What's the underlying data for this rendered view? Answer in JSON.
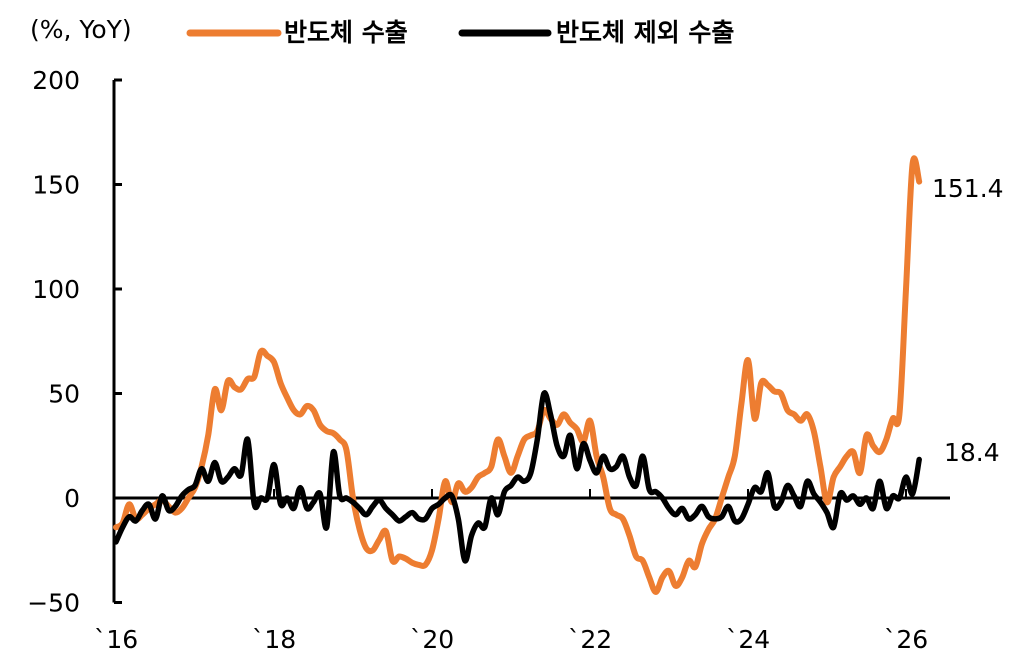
{
  "chart_data": {
    "type": "line",
    "title": "",
    "unit_label": "(%, YoY)",
    "xlabel": "",
    "ylabel": "(%, YoY)",
    "ylim": [
      -50,
      200
    ],
    "yticks": [
      200,
      150,
      100,
      50,
      0,
      -50
    ],
    "ytick_labels": [
      "200",
      "150",
      "100",
      "50",
      "0",
      "−50"
    ],
    "xtick_labels": [
      "`16",
      "`18",
      "`20",
      "`22",
      "`24",
      "`26"
    ],
    "xtick_years": [
      2016,
      2018,
      2020,
      2022,
      2024,
      2026
    ],
    "x_start": "2016-01",
    "x_frequency": "monthly",
    "grid": false,
    "legend_position": "top",
    "zero_line": true,
    "series": [
      {
        "name": "반도체 수출",
        "color": "#ED7D31",
        "end_label": "151.4",
        "values": [
          -14,
          -12,
          -3,
          -10,
          -8,
          -5,
          -3,
          -1,
          -4,
          -7,
          -5,
          0,
          5,
          15,
          30,
          52,
          42,
          56,
          53,
          52,
          57,
          58,
          70,
          68,
          65,
          55,
          48,
          42,
          40,
          44,
          42,
          35,
          32,
          31,
          28,
          23,
          0,
          -15,
          -24,
          -25,
          -20,
          -16,
          -30,
          -28,
          -29,
          -31,
          -32,
          -32,
          -25,
          -10,
          8,
          -2,
          7,
          3,
          5,
          10,
          12,
          15,
          28,
          20,
          12,
          20,
          28,
          30,
          32,
          42,
          38,
          35,
          40,
          36,
          33,
          27,
          37,
          20,
          10,
          -5,
          -8,
          -10,
          -18,
          -28,
          -30,
          -38,
          -45,
          -38,
          -35,
          -42,
          -38,
          -30,
          -33,
          -22,
          -15,
          -10,
          0,
          10,
          20,
          45,
          66,
          38,
          55,
          54,
          51,
          50,
          42,
          40,
          37,
          40,
          32,
          15,
          -2,
          10,
          15,
          20,
          22,
          12,
          30,
          25,
          22,
          28,
          38,
          40,
          100,
          160,
          151.4
        ]
      },
      {
        "name": "반도체 제외 수출",
        "color": "#000000",
        "end_label": "18.4",
        "values": [
          -21,
          -14,
          -9,
          -11,
          -6,
          -3,
          -10,
          1,
          -6,
          -4,
          1,
          4,
          6,
          14,
          8,
          17,
          8,
          10,
          14,
          11,
          28,
          -3,
          0,
          0,
          16,
          -3,
          0,
          -5,
          5,
          -5,
          -2,
          2,
          -14,
          22,
          1,
          0,
          -2,
          -5,
          -8,
          -4,
          -1,
          -5,
          -8,
          -11,
          -9,
          -7,
          -10,
          -10,
          -5,
          -3,
          0,
          1,
          -10,
          -30,
          -18,
          -12,
          -14,
          0,
          -8,
          3,
          6,
          10,
          8,
          12,
          28,
          50,
          40,
          25,
          20,
          30,
          14,
          26,
          18,
          12,
          20,
          14,
          15,
          20,
          10,
          6,
          20,
          4,
          3,
          0,
          -5,
          -8,
          -5,
          -10,
          -8,
          -4,
          -9,
          -10,
          -9,
          -4,
          -11,
          -10,
          -3,
          5,
          3,
          12,
          -4,
          -2,
          6,
          1,
          -4,
          8,
          2,
          -2,
          -7,
          -14,
          2,
          -1,
          1,
          -3,
          0,
          -5,
          8,
          -5,
          1,
          0,
          10,
          2,
          18.4
        ]
      }
    ]
  },
  "legend": {
    "unit": "(%, YoY)",
    "items": [
      {
        "label": "반도체 수출",
        "color": "#ED7D31"
      },
      {
        "label": "반도체 제외 수출",
        "color": "#000000"
      }
    ]
  },
  "annotations": {
    "semiconductor_last": "151.4",
    "ex_semiconductor_last": "18.4"
  }
}
